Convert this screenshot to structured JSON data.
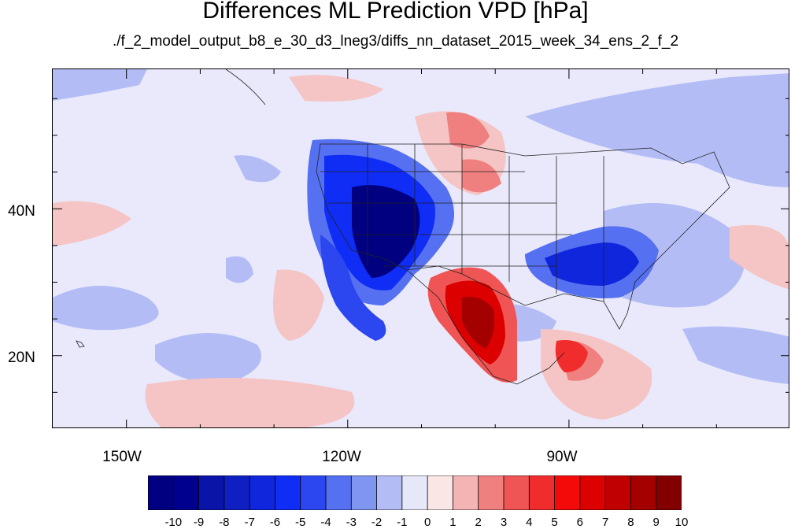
{
  "title": "Differences ML Prediction VPD [hPa]",
  "subtitle": "./f_2_model_output_b8_e_30_d3_lneg3/diffs_nn_dataset_2015_week_34_ens_2_f_2",
  "map": {
    "lon_range": [
      -160,
      -60
    ],
    "lat_range": [
      10,
      59
    ]
  },
  "axes": {
    "x_labels": [
      "150W",
      "120W",
      "90W"
    ],
    "y_labels": [
      "40N",
      "20N"
    ]
  },
  "colorbar": {
    "labels": [
      "-10",
      "-9",
      "-8",
      "-7",
      "-6",
      "-5",
      "-4",
      "-3",
      "-2",
      "-1",
      "0",
      "1",
      "2",
      "3",
      "4",
      "5",
      "6",
      "7",
      "8",
      "9",
      "10"
    ],
    "colors": [
      "#000080",
      "#00008f",
      "#0a14a8",
      "#0f1fc2",
      "#0f26dc",
      "#0f2df5",
      "#2c46f0",
      "#5570f0",
      "#8095f0",
      "#b4bcf5",
      "#e6e8fa",
      "#fbe6e6",
      "#f5b4b4",
      "#f08080",
      "#f05555",
      "#f02c2c",
      "#f50a0a",
      "#dc0000",
      "#c00000",
      "#a50000",
      "#820000"
    ]
  }
}
